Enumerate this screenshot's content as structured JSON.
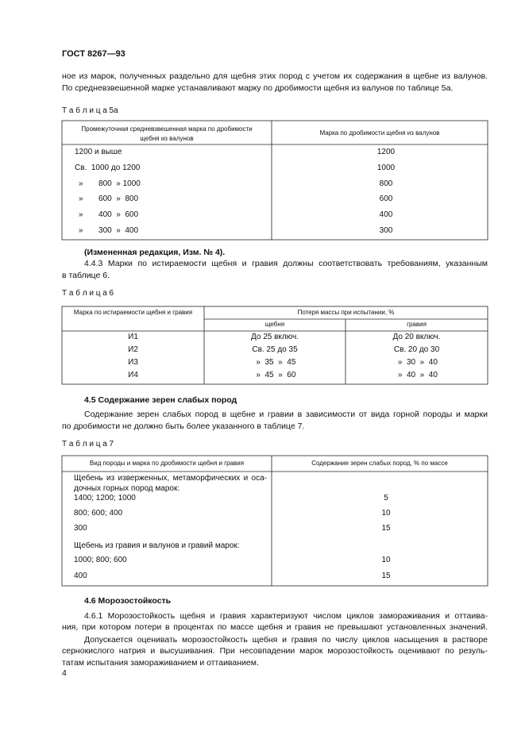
{
  "header": {
    "title": "ГОСТ 8267—93"
  },
  "intro": {
    "lines": [
      "ное из марок, полученных раздельно для щебня этих пород с учетом их содержания в щебне из валунов.",
      "По средневзвешенной марке устанавливают марку по дробимости щебня из валунов по таблице 5а."
    ]
  },
  "table_5a": {
    "caption": "Т а б л и ц а 5а",
    "headers": [
      [
        "Промежуточная средневзвешенная марка по дробимости",
        "щебня из валунов"
      ],
      [
        "Марка по дробимости щебня из валунов"
      ]
    ],
    "rows": [
      [
        "1200 и выше",
        "1200"
      ],
      [
        "Св.  1000 до 1200",
        "1000"
      ],
      [
        "»       800  » 1000",
        "800"
      ],
      [
        "»       600  »  800",
        "600"
      ],
      [
        "»       400  »  600",
        "400"
      ],
      [
        "»       300  »  400",
        "300"
      ]
    ]
  },
  "amendment_note": "(Измененная редакция, Изм. № 4).",
  "clause_4_4_3": {
    "lines": [
      "4.4.3 Марки по истираемости щебня и гравия должны соответствовать требованиям, указанным",
      "в таблице 6."
    ]
  },
  "table_6": {
    "caption": "Т а б л и ц а 6",
    "headers": {
      "mark": "Марка по истираемости щебня и гравия",
      "loss": "Потеря массы при испытании, %",
      "crushed_stone": "щебня",
      "gravel": "гравия"
    },
    "rows": [
      [
        "И1",
        "До 25 включ.",
        "До 20 включ."
      ],
      [
        "И2",
        "Св. 25 до 35",
        "Св. 20 до 30"
      ],
      [
        "И3",
        " »  35  »  45",
        " »  30  »  40"
      ],
      [
        "И4",
        " »  45  »  60",
        " »  40  »  40"
      ]
    ]
  },
  "section_4_5": {
    "heading": "4.5 Содержание зерен слабых пород",
    "lines": [
      "Содержание зерен слабых пород в щебне и гравии в зависимости от вида горной породы и марки",
      "по дробимости не должно быть более указанного в таблице 7."
    ]
  },
  "table_7": {
    "caption": "Т а б л и ц а 7",
    "headers": [
      "Вид породы и марка по дробимости щебня и гравия",
      "Содержание зерен слабых пород, % по массе"
    ],
    "rows": [
      {
        "group": [
          "Щебень из изверженных, метаморфических и оса-",
          "дочных горных пород марок:"
        ]
      },
      {
        "label": "1400; 1200; 1000",
        "value": "5"
      },
      {
        "label": "800; 600; 400",
        "value": "10"
      },
      {
        "label": "300",
        "value": "15"
      },
      {
        "group": [
          "Щебень из гравия и валунов и гравий марок:"
        ]
      },
      {
        "label": "1000; 800; 600",
        "value": "10"
      },
      {
        "label": "400",
        "value": "15"
      }
    ]
  },
  "section_4_6": {
    "heading": "4.6 Морозостойкость",
    "paragraphs": [
      [
        "4.6.1 Морозостойкость щебня и гравия характеризуют числом циклов замораживания и оттаива-",
        "ния, при котором потери в процентах по массе щебня и гравия не превышают установленных значений."
      ],
      [
        "Допускается оценивать морозостойкость щебня и гравия по числу циклов насыщения в растворе",
        "сернокислого натрия и высушивания. При несовпадении марок морозостойкость оценивают по резуль-",
        "татам испытания замораживанием и оттаиванием."
      ]
    ]
  },
  "footer": {
    "page_number": "4"
  }
}
